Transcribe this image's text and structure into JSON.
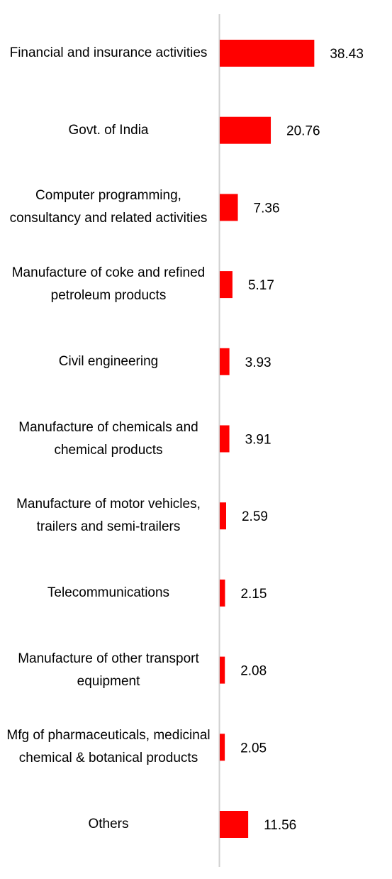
{
  "chart_data": {
    "type": "bar",
    "orientation": "horizontal",
    "categories": [
      "Financial and insurance activities",
      "Govt. of India",
      "Computer programming, consultancy and related activities",
      "Manufacture of coke and refined petroleum products",
      "Civil engineering",
      "Manufacture of chemicals and chemical products",
      "Manufacture of motor vehicles, trailers and semi-trailers",
      "Telecommunications",
      "Manufacture of other transport equipment",
      "Mfg of pharmaceuticals, medicinal chemical & botanical products",
      "Others"
    ],
    "values": [
      38.43,
      20.76,
      7.36,
      5.17,
      3.93,
      3.91,
      2.59,
      2.15,
      2.08,
      2.05,
      11.56
    ],
    "color": "#ff0000"
  }
}
